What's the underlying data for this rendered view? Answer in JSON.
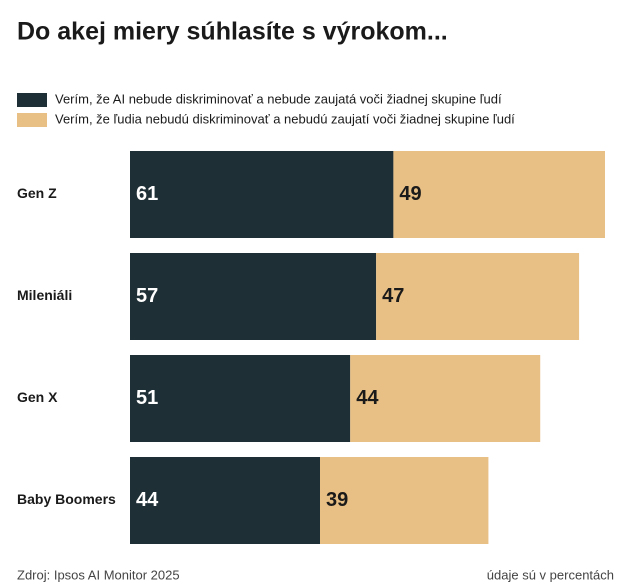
{
  "chart_data": {
    "type": "stacked-bar-horizontal",
    "title": "Do akej miery súhlasíte s výrokom...",
    "categories": [
      "Gen Z",
      "Mileniáli",
      "Gen X",
      "Baby Boomers"
    ],
    "series": [
      {
        "name": "Verím, že AI nebude diskriminovať a nebude zaujatá voči žiadnej skupine ľudí",
        "color": "#1f2f36",
        "label_color": "#ffffff",
        "values": [
          61,
          57,
          51,
          44
        ]
      },
      {
        "name": "Verím, že ľudia nebudú diskriminovať a nebudú zaujatí voči žiadnej skupine ľudí",
        "color": "#e8bf84",
        "label_color": "#1a1a1a",
        "values": [
          49,
          47,
          44,
          39
        ]
      }
    ],
    "source": "Zdroj: Ipsos AI Monitor 2025",
    "note": "údaje sú v percentách"
  }
}
